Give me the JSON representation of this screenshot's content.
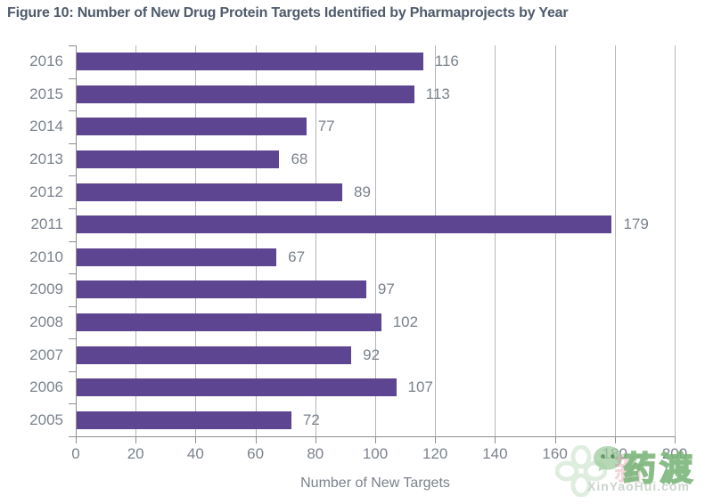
{
  "figure": {
    "title": "Figure 10: Number of New Drug Protein Targets Identified by Pharmaprojects by Year"
  },
  "chart_data": {
    "type": "bar",
    "orientation": "horizontal",
    "title": "Figure 10: Number of New Drug Protein Targets Identified by Pharmaprojects by Year",
    "categories": [
      "2016",
      "2015",
      "2014",
      "2013",
      "2012",
      "2011",
      "2010",
      "2009",
      "2008",
      "2007",
      "2006",
      "2005"
    ],
    "values": [
      116,
      113,
      77,
      68,
      89,
      179,
      67,
      97,
      102,
      92,
      107,
      72
    ],
    "xlabel": "Number of New Targets",
    "ylabel": "",
    "xlim": [
      0,
      200
    ],
    "x_ticks": [
      0,
      20,
      40,
      60,
      80,
      100,
      120,
      140,
      160,
      180,
      200
    ],
    "grid": "vertical",
    "legend": "none",
    "bar_color": "#5E4591",
    "value_labels_shown": true
  },
  "watermark": {
    "faint_text": "新",
    "logo_text": "药渡",
    "url_text": "XinYaoHui.com",
    "icon": "wechat-clover-logo",
    "green": "#86bd86"
  },
  "colors": {
    "bar": "#5E4591",
    "title": "#4F5B6B",
    "label": "#7B828B",
    "grid": "#b5b5b8",
    "axis": "#8f8f93",
    "background": "#ffffff"
  }
}
